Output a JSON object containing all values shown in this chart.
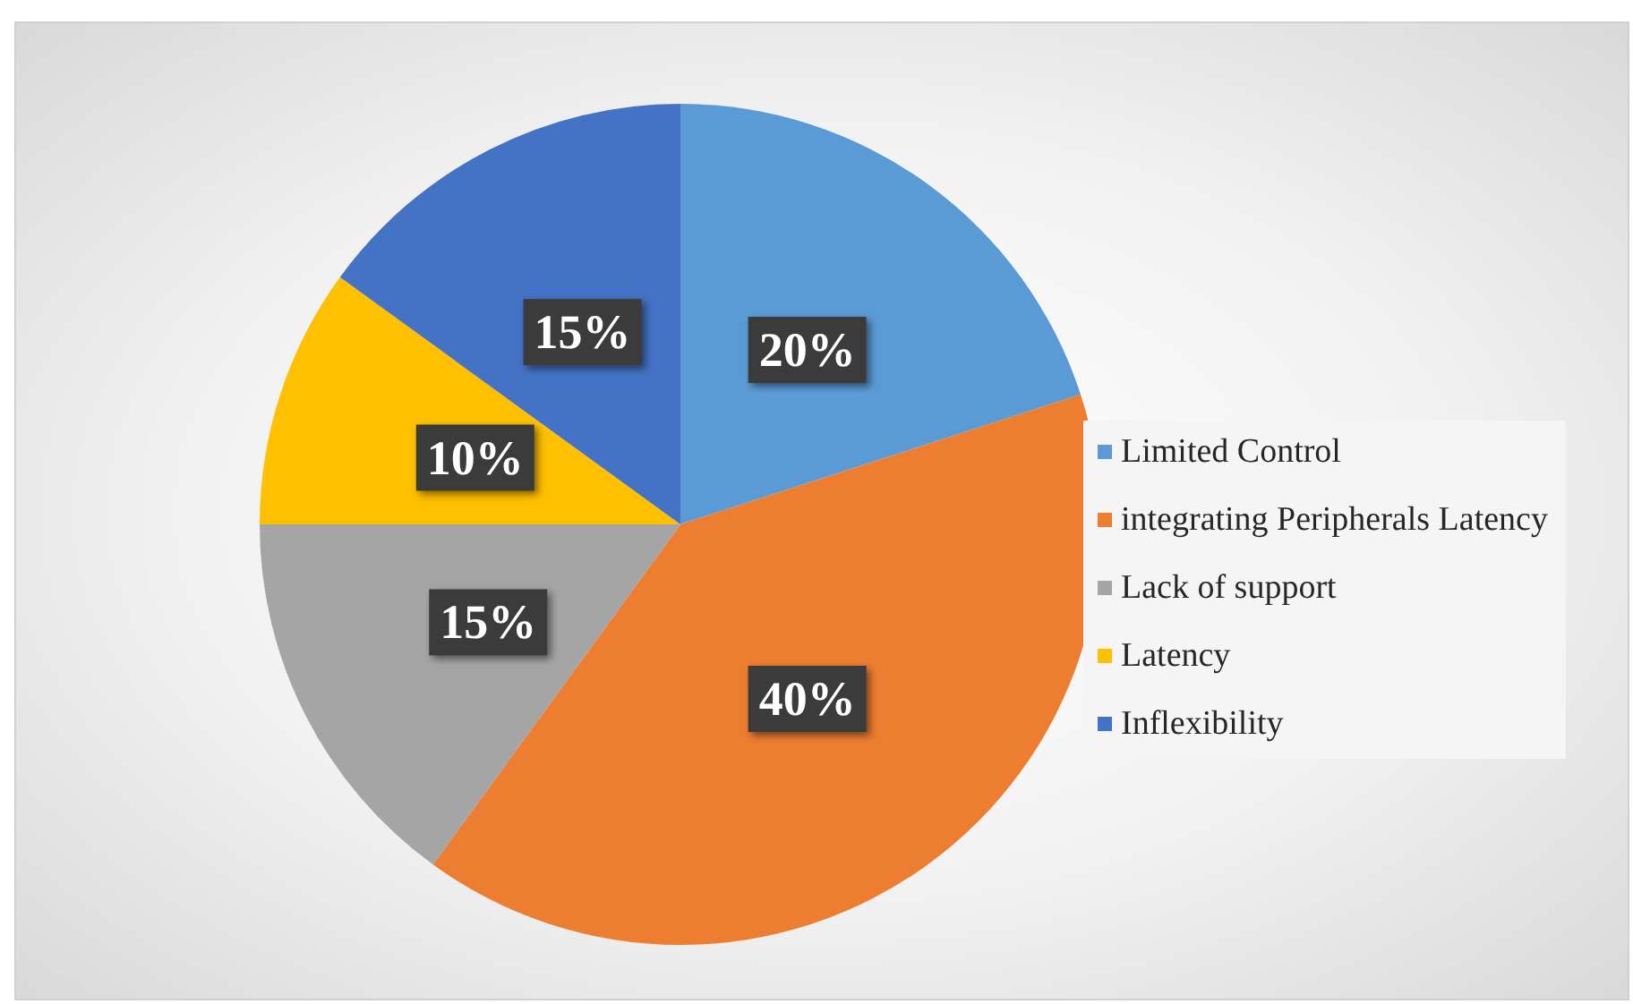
{
  "chart_data": {
    "type": "pie",
    "categories": [
      "Limited Control",
      "integrating Peripherals Latency",
      "Lack of support",
      "Latency",
      "Inflexibility"
    ],
    "values": [
      20,
      40,
      15,
      10,
      15
    ],
    "colors": [
      "#5b9bd5",
      "#ed7d31",
      "#a5a5a5",
      "#ffc000",
      "#4472c4"
    ],
    "value_labels": [
      "20%",
      "40%",
      "15%",
      "10%",
      "15%"
    ],
    "legend": "right"
  }
}
